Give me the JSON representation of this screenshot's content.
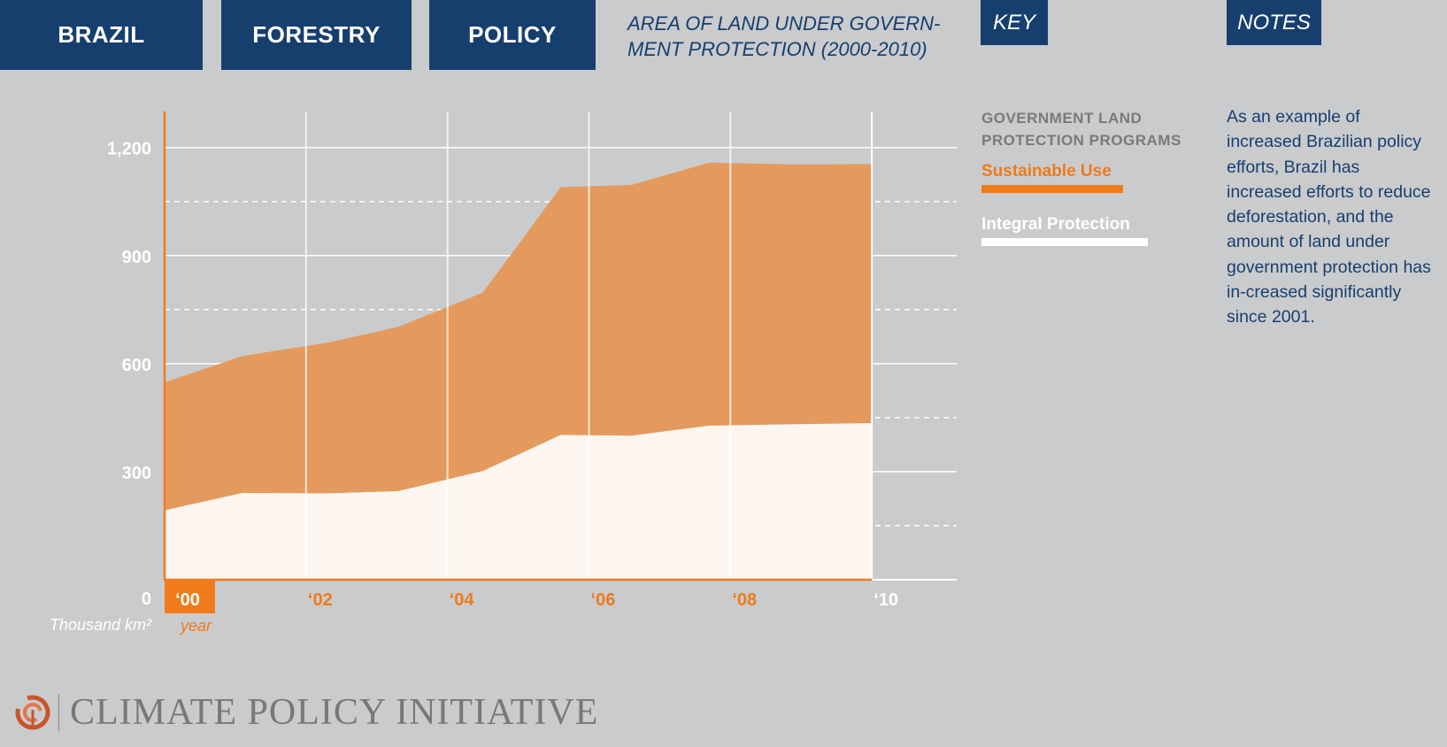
{
  "tabs": [
    "BRAZIL",
    "FORESTRY",
    "POLICY"
  ],
  "key_label": "KEY",
  "notes_label": "NOTES",
  "key": {
    "heading": "GOVERNMENT LAND PROTECTION PROGRAMS",
    "items": [
      {
        "label": "Sustainable Use",
        "color": "#ef7b1a"
      },
      {
        "label": "Integral Protection",
        "color": "#ffffff"
      }
    ]
  },
  "notes": "As an example of increased Brazilian policy efforts, Brazil has increased efforts to reduce deforestation, and the amount of land under government protection has in-creased significantly since 2001.",
  "logo": {
    "text": "CLIMATE POLICY INITIATIVE"
  },
  "chart_data": {
    "type": "area",
    "title": "AREA OF LAND UNDER GOVERN-MENT PROTECTION (2000-2010)",
    "xlabel": "year",
    "ylabel": "Thousand km²",
    "x_tick_labels": [
      "‘00",
      "‘02",
      "‘04",
      "‘06",
      "‘08",
      "‘10"
    ],
    "x_tick_values": [
      2000,
      2002,
      2004,
      2006,
      2008,
      2010
    ],
    "y_tick_labels": [
      "0",
      "300",
      "600",
      "900",
      "1,200"
    ],
    "y_tick_values": [
      0,
      300,
      600,
      900,
      1200
    ],
    "xlim": [
      2000,
      2011.2
    ],
    "ylim": [
      0,
      1300
    ],
    "stacked": true,
    "x": [
      2000,
      2001.1,
      2002.3,
      2003.3,
      2004.5,
      2005.6,
      2006.6,
      2007.7,
      2008.9,
      2010
    ],
    "series": [
      {
        "name": "Integral Protection",
        "color": "#fdf5ef",
        "values": [
          193,
          241,
          240,
          246,
          302,
          402,
          400,
          428,
          432,
          435
        ]
      },
      {
        "name": "Sustainable Use",
        "color": "#e39a5c",
        "values": [
          355,
          380,
          418,
          456,
          495,
          688,
          696,
          730,
          721,
          719
        ]
      }
    ],
    "gridlines": {
      "horizontal_solid": true,
      "horizontal_dashed_midlines": true,
      "vertical_solid": true
    },
    "legend": "right",
    "axis_color": "#ef7b1a"
  }
}
